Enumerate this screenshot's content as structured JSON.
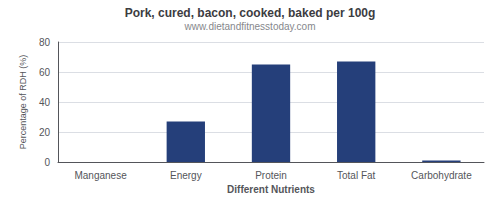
{
  "chart_data": {
    "type": "bar",
    "title": "Pork, cured, bacon, cooked, baked per 100g",
    "subtitle": "www.dietandfitnesstoday.com",
    "xlabel": "Different Nutrients",
    "ylabel": "Percentage of RDH (%)",
    "categories": [
      "Manganese",
      "Energy",
      "Protein",
      "Total Fat",
      "Carbohydrate"
    ],
    "values": [
      0,
      27,
      65,
      67,
      1
    ],
    "color": "#253f7a",
    "ylim": [
      0,
      80
    ],
    "yticks": [
      0,
      20,
      40,
      60,
      80
    ],
    "grid": true
  }
}
